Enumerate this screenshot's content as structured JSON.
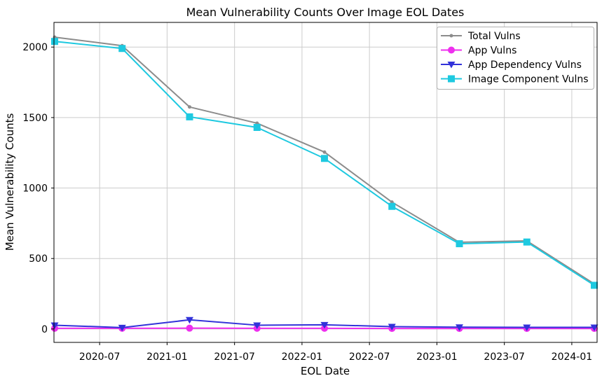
{
  "chart_data": {
    "type": "line",
    "title": "Mean Vulnerability Counts Over Image EOL Dates",
    "xlabel": "EOL Date",
    "ylabel": "Mean Vulnerability Counts",
    "x": [
      "2020-03",
      "2020-09",
      "2021-03",
      "2021-09",
      "2022-03",
      "2022-09",
      "2023-03",
      "2023-09",
      "2024-03"
    ],
    "x_tick_labels": [
      "2020-07",
      "2021-01",
      "2021-07",
      "2022-01",
      "2022-07",
      "2023-01",
      "2023-07",
      "2024-01"
    ],
    "y_ticks": [
      0,
      500,
      1000,
      1500,
      2000
    ],
    "ylim": [
      -95,
      2175
    ],
    "grid": true,
    "legend_position": "upper right",
    "colors": {
      "axis": "#000000",
      "grid": "#cccccc",
      "legend_border": "#b0b0b0",
      "background": "#ffffff"
    },
    "series": [
      {
        "name": "Total Vulns",
        "color": "#8c8c8c",
        "marker": "dot",
        "values": [
          2070,
          2010,
          1575,
          1460,
          1255,
          900,
          615,
          625,
          320
        ]
      },
      {
        "name": "App Vulns",
        "color": "#ee2fee",
        "marker": "circle",
        "values": [
          5,
          5,
          6,
          5,
          5,
          4,
          4,
          4,
          4
        ]
      },
      {
        "name": "App Dependency Vulns",
        "color": "#3232d9",
        "marker": "triangle-down",
        "values": [
          27,
          10,
          65,
          27,
          30,
          17,
          13,
          12,
          12
        ]
      },
      {
        "name": "Image Component Vulns",
        "color": "#1ec9e0",
        "marker": "square",
        "values": [
          2040,
          1990,
          1505,
          1430,
          1210,
          870,
          605,
          617,
          310
        ]
      }
    ]
  }
}
